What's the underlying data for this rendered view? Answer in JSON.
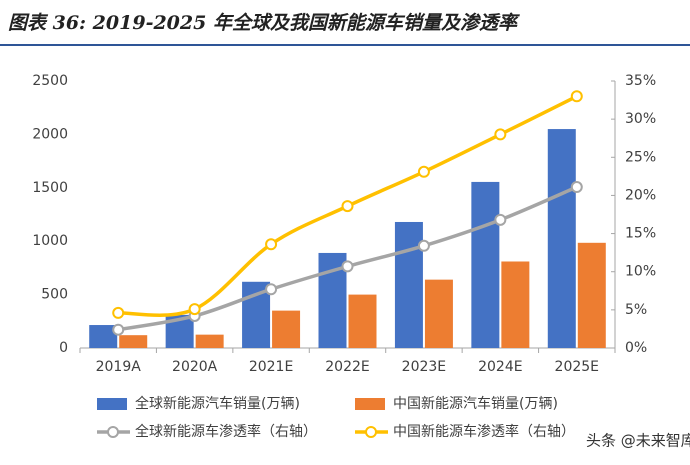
{
  "chart_data": {
    "type": "bar",
    "title": "图表 36: 2019-2025 年全球及我国新能源车销量及渗透率",
    "categories": [
      "2019A",
      "2020A",
      "2021E",
      "2022E",
      "2023E",
      "2024E",
      "2025E"
    ],
    "ylim": [
      0,
      2500
    ],
    "yticks": [
      0,
      500,
      1000,
      1500,
      2000,
      2500
    ],
    "y2lim": [
      0,
      35
    ],
    "y2ticks": [
      {
        "value": 0,
        "label": "0%"
      },
      {
        "value": 5,
        "label": "5%"
      },
      {
        "value": 10,
        "label": "10%"
      },
      {
        "value": 15,
        "label": "15%"
      },
      {
        "value": 20,
        "label": "20%"
      },
      {
        "value": 25,
        "label": "25%"
      },
      {
        "value": 30,
        "label": "30%"
      },
      {
        "value": 35,
        "label": "35%"
      }
    ],
    "series": [
      {
        "name": "全球新能源汽车销量(万辆)",
        "type": "bar",
        "color": "#4472c4",
        "values": [
          215,
          310,
          620,
          890,
          1180,
          1555,
          2050
        ]
      },
      {
        "name": "中国新能源汽车销量(万辆)",
        "type": "bar",
        "color": "#ed7d31",
        "values": [
          120,
          125,
          350,
          500,
          640,
          810,
          985
        ]
      },
      {
        "name": "全球新能源车渗透率（右轴）",
        "type": "line",
        "axis": "y2",
        "color": "#a5a5a5",
        "values": [
          2.4,
          4.2,
          7.7,
          10.7,
          13.4,
          16.8,
          21.1
        ]
      },
      {
        "name": "中国新能源车渗透率（右轴）",
        "type": "line",
        "axis": "y2",
        "color": "#ffc000",
        "values": [
          4.6,
          5.1,
          13.6,
          18.6,
          23.1,
          28.0,
          33.0
        ]
      }
    ],
    "watermark": "头条 @未来智库"
  }
}
